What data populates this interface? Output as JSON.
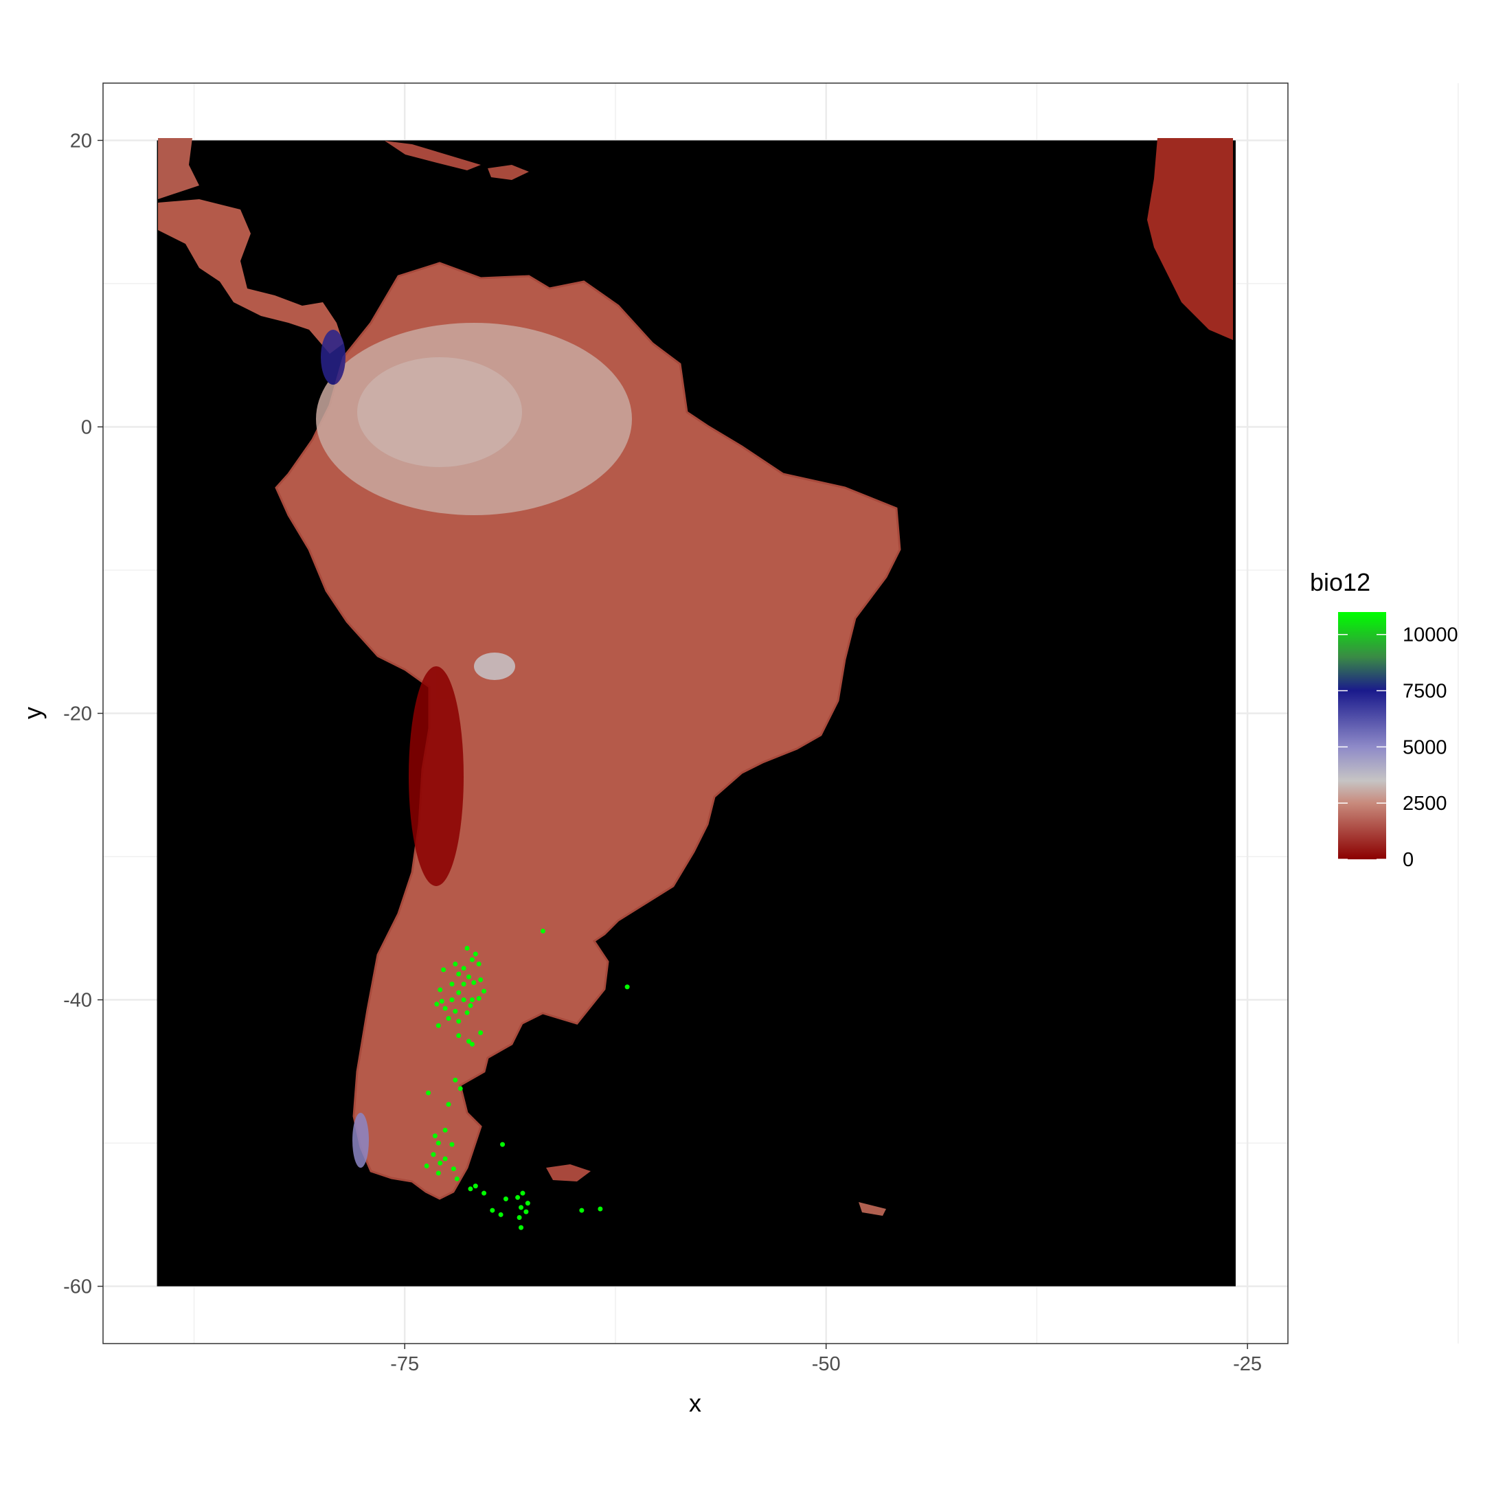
{
  "chart_data": {
    "type": "raster-map",
    "title": "",
    "xlabel": "x",
    "ylabel": "y",
    "xlim": [
      -92.9,
      -22.6
    ],
    "ylim": [
      -64,
      24
    ],
    "raster_extent": {
      "x": [
        -89.7,
        -25.7
      ],
      "y": [
        -60,
        20
      ]
    },
    "x_ticks": [
      -75,
      -50,
      -25
    ],
    "x_tick_labels": [
      "-75",
      "-50",
      "-25"
    ],
    "y_ticks": [
      20,
      0,
      -20,
      -40,
      -60
    ],
    "y_tick_labels": [
      "20",
      "0",
      "-20",
      "-40",
      "-60"
    ],
    "grid": true,
    "background": "#000000",
    "legend": {
      "title": "bio12",
      "position": "right",
      "range": [
        0,
        11000
      ],
      "breaks": [
        0,
        2500,
        5000,
        7500,
        10000
      ],
      "labels": [
        "0",
        "2500",
        "5000",
        "7500",
        "10000"
      ],
      "colors": [
        {
          "value": 0,
          "color": "#8b0000"
        },
        {
          "value": 2500,
          "color": "#c88a7c"
        },
        {
          "value": 3500,
          "color": "#c6c4c4"
        },
        {
          "value": 5000,
          "color": "#8e8ac8"
        },
        {
          "value": 7500,
          "color": "#1a1a8c"
        },
        {
          "value": 9000,
          "color": "#3a8a45"
        },
        {
          "value": 11000,
          "color": "#00ff00"
        }
      ]
    },
    "points": {
      "color": "#00ff00",
      "coords": [
        [
          -71.3,
          -36.4
        ],
        [
          -70.8,
          -36.8
        ],
        [
          -72.0,
          -37.5
        ],
        [
          -71.5,
          -37.8
        ],
        [
          -71.0,
          -37.2
        ],
        [
          -70.6,
          -37.5
        ],
        [
          -72.7,
          -37.9
        ],
        [
          -71.8,
          -38.2
        ],
        [
          -71.2,
          -38.4
        ],
        [
          -70.9,
          -38.8
        ],
        [
          -71.5,
          -38.9
        ],
        [
          -70.5,
          -38.6
        ],
        [
          -72.2,
          -38.9
        ],
        [
          -72.9,
          -39.3
        ],
        [
          -71.8,
          -39.5
        ],
        [
          -70.3,
          -39.4
        ],
        [
          -70.6,
          -39.9
        ],
        [
          -71.0,
          -40.0
        ],
        [
          -71.5,
          -40.0
        ],
        [
          -72.2,
          -40.0
        ],
        [
          -72.8,
          -40.1
        ],
        [
          -73.1,
          -40.3
        ],
        [
          -71.1,
          -40.4
        ],
        [
          -72.6,
          -40.6
        ],
        [
          -72.0,
          -40.8
        ],
        [
          -71.3,
          -40.9
        ],
        [
          -72.4,
          -41.3
        ],
        [
          -71.8,
          -41.5
        ],
        [
          -73.0,
          -41.8
        ],
        [
          -70.5,
          -42.3
        ],
        [
          -71.8,
          -42.5
        ],
        [
          -71.2,
          -42.9
        ],
        [
          -71.0,
          -43.1
        ],
        [
          -72.0,
          -45.6
        ],
        [
          -71.7,
          -46.2
        ],
        [
          -73.6,
          -46.5
        ],
        [
          -72.4,
          -47.3
        ],
        [
          -72.6,
          -49.1
        ],
        [
          -73.2,
          -49.5
        ],
        [
          -73.0,
          -50.0
        ],
        [
          -72.2,
          -50.1
        ],
        [
          -69.2,
          -50.1
        ],
        [
          -73.3,
          -50.8
        ],
        [
          -72.6,
          -51.1
        ],
        [
          -72.9,
          -51.4
        ],
        [
          -73.7,
          -51.6
        ],
        [
          -72.1,
          -51.8
        ],
        [
          -73.0,
          -52.1
        ],
        [
          -71.9,
          -52.5
        ],
        [
          -70.8,
          -53.0
        ],
        [
          -71.1,
          -53.2
        ],
        [
          -70.3,
          -53.5
        ],
        [
          -68.0,
          -53.5
        ],
        [
          -68.3,
          -53.8
        ],
        [
          -69.0,
          -53.9
        ],
        [
          -67.7,
          -54.2
        ],
        [
          -68.1,
          -54.5
        ],
        [
          -69.8,
          -54.7
        ],
        [
          -67.8,
          -54.8
        ],
        [
          -64.5,
          -54.7
        ],
        [
          -63.4,
          -54.6
        ],
        [
          -68.2,
          -55.2
        ],
        [
          -69.3,
          -55.0
        ],
        [
          -66.8,
          -35.2
        ],
        [
          -61.8,
          -39.1
        ],
        [
          -68.1,
          -55.9
        ]
      ]
    }
  }
}
